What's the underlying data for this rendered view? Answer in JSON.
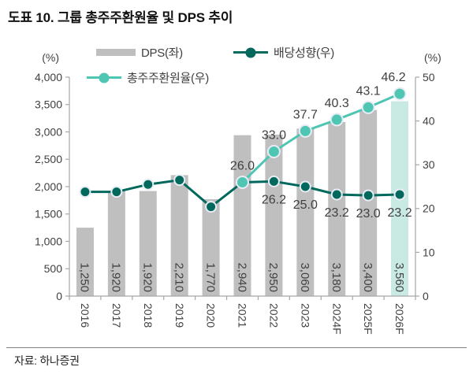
{
  "title": "도표 10. 그룹 총주주환원율 및 DPS 추이",
  "source": "자료: 하나증권",
  "legend": {
    "dps": "DPS(좌)",
    "payout": "배당성향(우)",
    "tsr": "총주주환원율(우)"
  },
  "axis_units": {
    "left": "(%)",
    "right": "(%)"
  },
  "colors": {
    "bar": "#BFBFBF",
    "bar_highlight": "#C9EAE3",
    "payout_line": "#00685C",
    "tsr_line": "#4FC5B3",
    "marker_ring": "#E8ECF4",
    "axis": "#A6A6A6",
    "tick_text": "#404040",
    "label_text": "#404040"
  },
  "chart_data": {
    "type": "combo (bar + 2 lines, dual axis)",
    "categories": [
      "2016",
      "2017",
      "2018",
      "2019",
      "2020",
      "2021",
      "2022",
      "2023",
      "2024F",
      "2025F",
      "2026F"
    ],
    "left_axis": {
      "min": 0,
      "max": 4000,
      "step": 500,
      "tick_labels": [
        "0",
        "500",
        "1,000",
        "1,500",
        "2,000",
        "2,500",
        "3,000",
        "3,500",
        "4,000"
      ]
    },
    "right_axis": {
      "min": 0,
      "max": 50,
      "step": 10,
      "tick_labels": [
        "0",
        "10",
        "20",
        "30",
        "40",
        "50"
      ]
    },
    "series": [
      {
        "name": "DPS(좌)",
        "type": "bar",
        "axis": "left",
        "values": [
          1250,
          1920,
          1920,
          2210,
          1770,
          2940,
          2950,
          3060,
          3180,
          3400,
          3560
        ],
        "bar_labels": [
          "1,250",
          "1,920",
          "1,920",
          "2,210",
          "1,770",
          "2,940",
          "2,950",
          "3,060",
          "3,180",
          "3,400",
          "3,560"
        ],
        "highlight_last": true
      },
      {
        "name": "배당성향(우)",
        "type": "line",
        "axis": "right",
        "values": [
          23.8,
          23.8,
          25.5,
          26.5,
          20.4,
          26.0,
          26.2,
          25.0,
          23.2,
          23.0,
          23.2
        ],
        "values_note": "2016-2021 unlabeled, estimated from pixels",
        "point_labels": [
          null,
          null,
          null,
          null,
          null,
          null,
          "26.2",
          "25.0",
          "23.2",
          "23.0",
          "23.2"
        ]
      },
      {
        "name": "총주주환원율(우)",
        "type": "line",
        "axis": "right",
        "values": [
          null,
          null,
          null,
          null,
          null,
          26.0,
          33.0,
          37.7,
          40.3,
          43.1,
          46.2
        ],
        "point_labels": [
          null,
          null,
          null,
          null,
          null,
          "26.0",
          "33.0",
          "37.7",
          "40.3",
          "43.1",
          "46.2"
        ]
      }
    ],
    "grid": "none (white plot, outward ticks on left/right/bottom axes)",
    "legend_position": "top, two rows"
  }
}
